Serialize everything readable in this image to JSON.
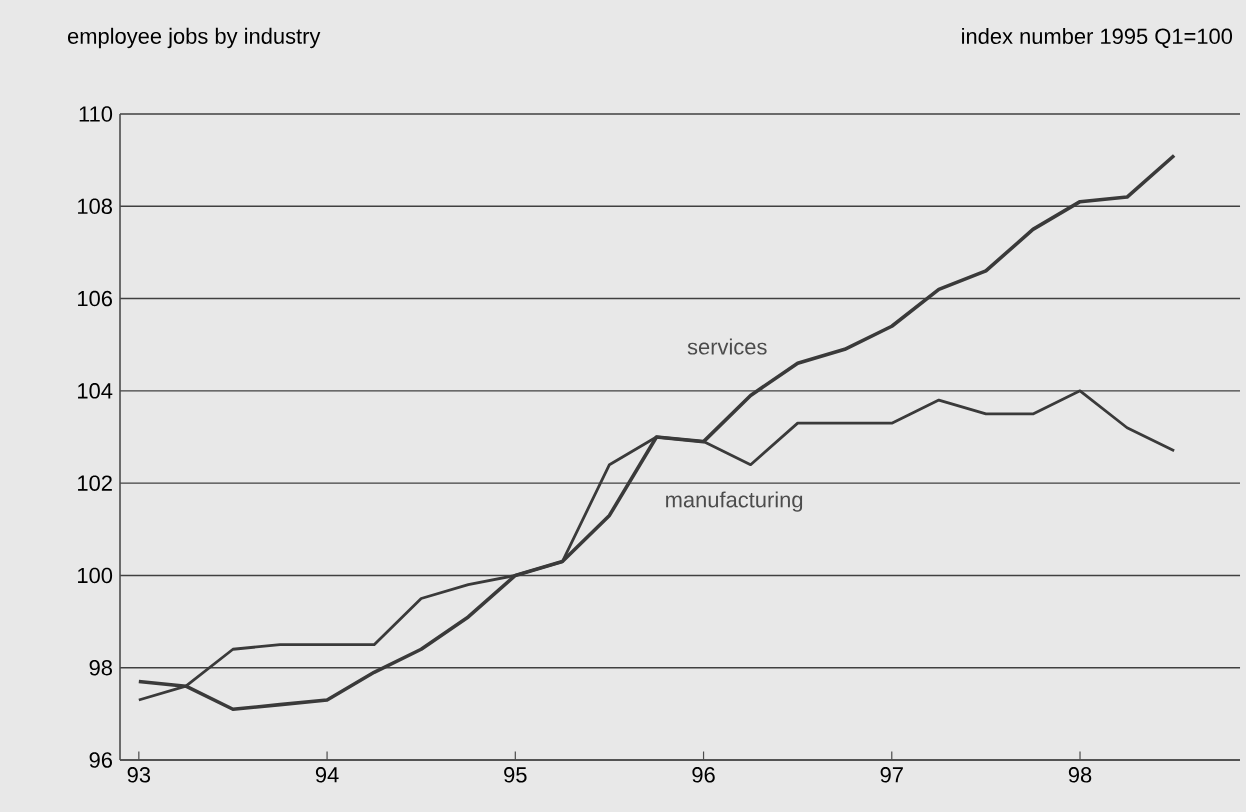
{
  "chart_data": {
    "type": "line",
    "title": "employee jobs by industry",
    "annotations": [
      "index number 1995 Q1=100"
    ],
    "x": [
      93,
      93.25,
      93.5,
      93.75,
      94,
      94.25,
      94.5,
      94.75,
      95,
      95.25,
      95.5,
      95.75,
      96,
      96.25,
      96.5,
      96.75,
      97,
      97.25,
      97.5,
      97.75,
      98,
      98.25,
      98.5
    ],
    "series": [
      {
        "name": "services",
        "color": "#3a3a3a",
        "values": [
          97.7,
          97.6,
          97.1,
          97.2,
          97.3,
          97.9,
          98.4,
          99.1,
          100,
          100.3,
          101.3,
          103.0,
          102.9,
          103.9,
          104.6,
          104.9,
          105.4,
          106.2,
          106.6,
          107.5,
          108.1,
          108.2,
          109.1
        ]
      },
      {
        "name": "manufacturing",
        "color": "#3a3a3a",
        "values": [
          97.3,
          97.6,
          98.4,
          98.5,
          98.5,
          98.5,
          99.5,
          99.8,
          100,
          100.3,
          102.4,
          103.0,
          102.9,
          102.4,
          103.3,
          103.3,
          103.3,
          103.8,
          103.5,
          103.5,
          104.0,
          103.2,
          102.7
        ]
      }
    ],
    "xlim": [
      92.9,
      98.85
    ],
    "ylim": [
      96,
      110
    ],
    "xticks": [
      93,
      94,
      95,
      96,
      97,
      98
    ],
    "yticks": [
      96,
      98,
      100,
      102,
      104,
      106,
      108,
      110
    ],
    "grid": "y",
    "legend": false,
    "marker": "none",
    "line_style": "solid"
  }
}
